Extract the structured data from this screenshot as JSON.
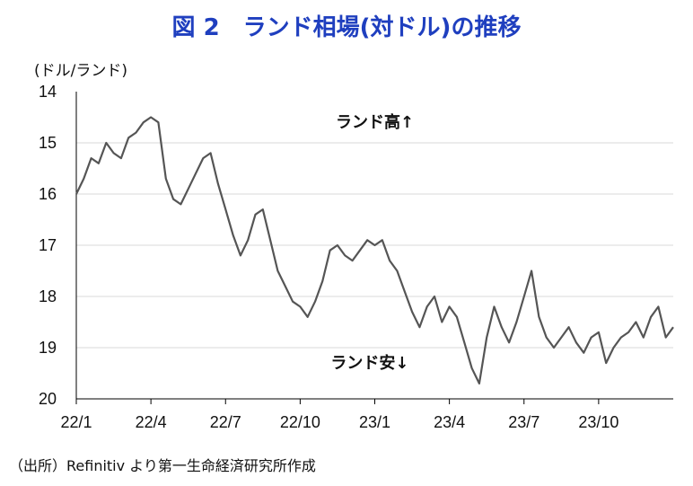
{
  "title": "図 2　ランド相場(対ドル)の推移",
  "source": "（出所）Refinitiv より第一生命経済研究所作成",
  "chart_data": {
    "type": "line",
    "title": "図 2　ランド相場(対ドル)の推移",
    "ylabel": "(ドル/ランド)",
    "xlabel": "",
    "ylim": [
      14,
      20
    ],
    "y_reversed": true,
    "yticks": [
      "14",
      "15",
      "16",
      "17",
      "18",
      "19",
      "20"
    ],
    "xlim": [
      0,
      24
    ],
    "xticks": [
      {
        "value": 0,
        "label": "22/1"
      },
      {
        "value": 3,
        "label": "22/4"
      },
      {
        "value": 6,
        "label": "22/7"
      },
      {
        "value": 9,
        "label": "22/10"
      },
      {
        "value": 12,
        "label": "23/1"
      },
      {
        "value": 15,
        "label": "23/4"
      },
      {
        "value": 18,
        "label": "23/7"
      },
      {
        "value": 21,
        "label": "23/10"
      }
    ],
    "grid": "horizontal",
    "line_color": "#555555",
    "annotations": [
      {
        "text": "ランド高↑",
        "x": 12,
        "y": 14.7
      },
      {
        "text": "ランド安↓",
        "x": 11.8,
        "y": 19.4
      }
    ],
    "series": [
      {
        "x": [
          0,
          0.3,
          0.6,
          0.9,
          1.2,
          1.5,
          1.8,
          2.1,
          2.4,
          2.7,
          3.0,
          3.3,
          3.6,
          3.9,
          4.2,
          4.5,
          4.8,
          5.1,
          5.4,
          5.7,
          6.0,
          6.3,
          6.6,
          6.9,
          7.2,
          7.5,
          7.8,
          8.1,
          8.4,
          8.7,
          9.0,
          9.3,
          9.6,
          9.9,
          10.2,
          10.5,
          10.8,
          11.1,
          11.4,
          11.7,
          12.0,
          12.3,
          12.6,
          12.9,
          13.2,
          13.5,
          13.8,
          14.1,
          14.4,
          14.7,
          15.0,
          15.3,
          15.6,
          15.9,
          16.2,
          16.5,
          16.8,
          17.1,
          17.4,
          17.7,
          18.0,
          18.3,
          18.6,
          18.9,
          19.2,
          19.5,
          19.8,
          20.1,
          20.4,
          20.7,
          21.0,
          21.3,
          21.6,
          21.9,
          22.2,
          22.5,
          22.8,
          23.1,
          23.4,
          23.7,
          24.0
        ],
        "values": [
          16.0,
          15.7,
          15.3,
          15.4,
          15.0,
          15.2,
          15.3,
          14.9,
          14.8,
          14.6,
          14.5,
          14.6,
          15.7,
          16.1,
          16.2,
          15.9,
          15.6,
          15.3,
          15.2,
          15.8,
          16.3,
          16.8,
          17.2,
          16.9,
          16.4,
          16.3,
          16.9,
          17.5,
          17.8,
          18.1,
          18.2,
          18.4,
          18.1,
          17.7,
          17.1,
          17.0,
          17.2,
          17.3,
          17.1,
          16.9,
          17.0,
          16.9,
          17.3,
          17.5,
          17.9,
          18.3,
          18.6,
          18.2,
          18.0,
          18.5,
          18.2,
          18.4,
          18.9,
          19.4,
          19.7,
          18.8,
          18.2,
          18.6,
          18.9,
          18.5,
          18.0,
          17.5,
          18.4,
          18.8,
          19.0,
          18.8,
          18.6,
          18.9,
          19.1,
          18.8,
          18.7,
          19.3,
          19.0,
          18.8,
          18.7,
          18.5,
          18.8,
          18.4,
          18.2,
          18.8,
          18.6
        ]
      }
    ]
  }
}
